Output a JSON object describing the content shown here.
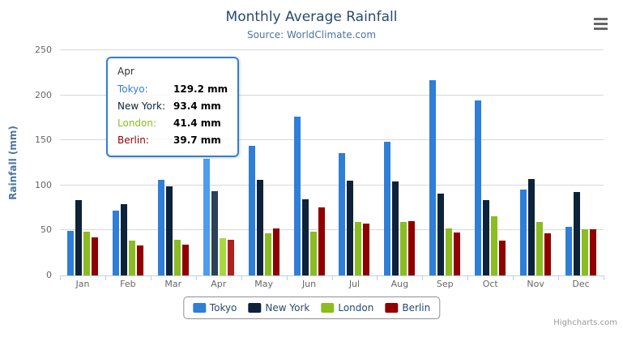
{
  "chart": {
    "title": "Monthly Average Rainfall",
    "subtitle": "Source: WorldClimate.com",
    "y_axis_title": "Rainfall (mm)",
    "credits": "Highcharts.com"
  },
  "chart_data": {
    "type": "bar",
    "title": "Monthly Average Rainfall",
    "subtitle": "Source: WorldClimate.com",
    "xlabel": "",
    "ylabel": "Rainfall (mm)",
    "ylim": [
      0,
      250
    ],
    "ytick_step": 50,
    "grid": true,
    "legend_position": "bottom",
    "categories": [
      "Jan",
      "Feb",
      "Mar",
      "Apr",
      "May",
      "Jun",
      "Jul",
      "Aug",
      "Sep",
      "Oct",
      "Nov",
      "Dec"
    ],
    "series": [
      {
        "name": "Tokyo",
        "color": "#2f7ed8",
        "hover_color": "#4f9bf0",
        "values": [
          49.9,
          71.5,
          106.4,
          129.2,
          144.0,
          176.0,
          135.6,
          148.5,
          216.4,
          194.1,
          95.6,
          54.4
        ]
      },
      {
        "name": "New York",
        "color": "#0d233a",
        "hover_color": "#2c4258",
        "values": [
          83.6,
          78.8,
          98.5,
          93.4,
          106.0,
          84.5,
          105.0,
          104.3,
          91.2,
          83.5,
          106.6,
          92.3
        ]
      },
      {
        "name": "London",
        "color": "#8bbc21",
        "hover_color": "#a7d83e",
        "values": [
          48.9,
          38.8,
          39.3,
          41.4,
          47.0,
          48.3,
          59.0,
          59.6,
          52.4,
          65.2,
          59.3,
          51.2
        ]
      },
      {
        "name": "Berlin",
        "color": "#910000",
        "hover_color": "#b02020",
        "values": [
          42.4,
          33.2,
          34.5,
          39.7,
          52.6,
          75.5,
          57.4,
          60.4,
          47.6,
          39.1,
          46.8,
          51.1
        ]
      }
    ],
    "hovered_category_index": 3
  },
  "tooltip": {
    "header": "Apr",
    "border_color": "#2f7ed8",
    "rows": [
      {
        "label": "Tokyo:",
        "value": "129.2 mm",
        "color": "#2f7ed8"
      },
      {
        "label": "New York:",
        "value": "93.4 mm",
        "color": "#0d233a"
      },
      {
        "label": "London:",
        "value": "41.4 mm",
        "color": "#8bbc21"
      },
      {
        "label": "Berlin:",
        "value": "39.7 mm",
        "color": "#910000"
      }
    ]
  },
  "legend": {
    "items": [
      {
        "label": "Tokyo",
        "color": "#2f7ed8"
      },
      {
        "label": "New York",
        "color": "#0d233a"
      },
      {
        "label": "London",
        "color": "#8bbc21"
      },
      {
        "label": "Berlin",
        "color": "#910000"
      }
    ]
  }
}
